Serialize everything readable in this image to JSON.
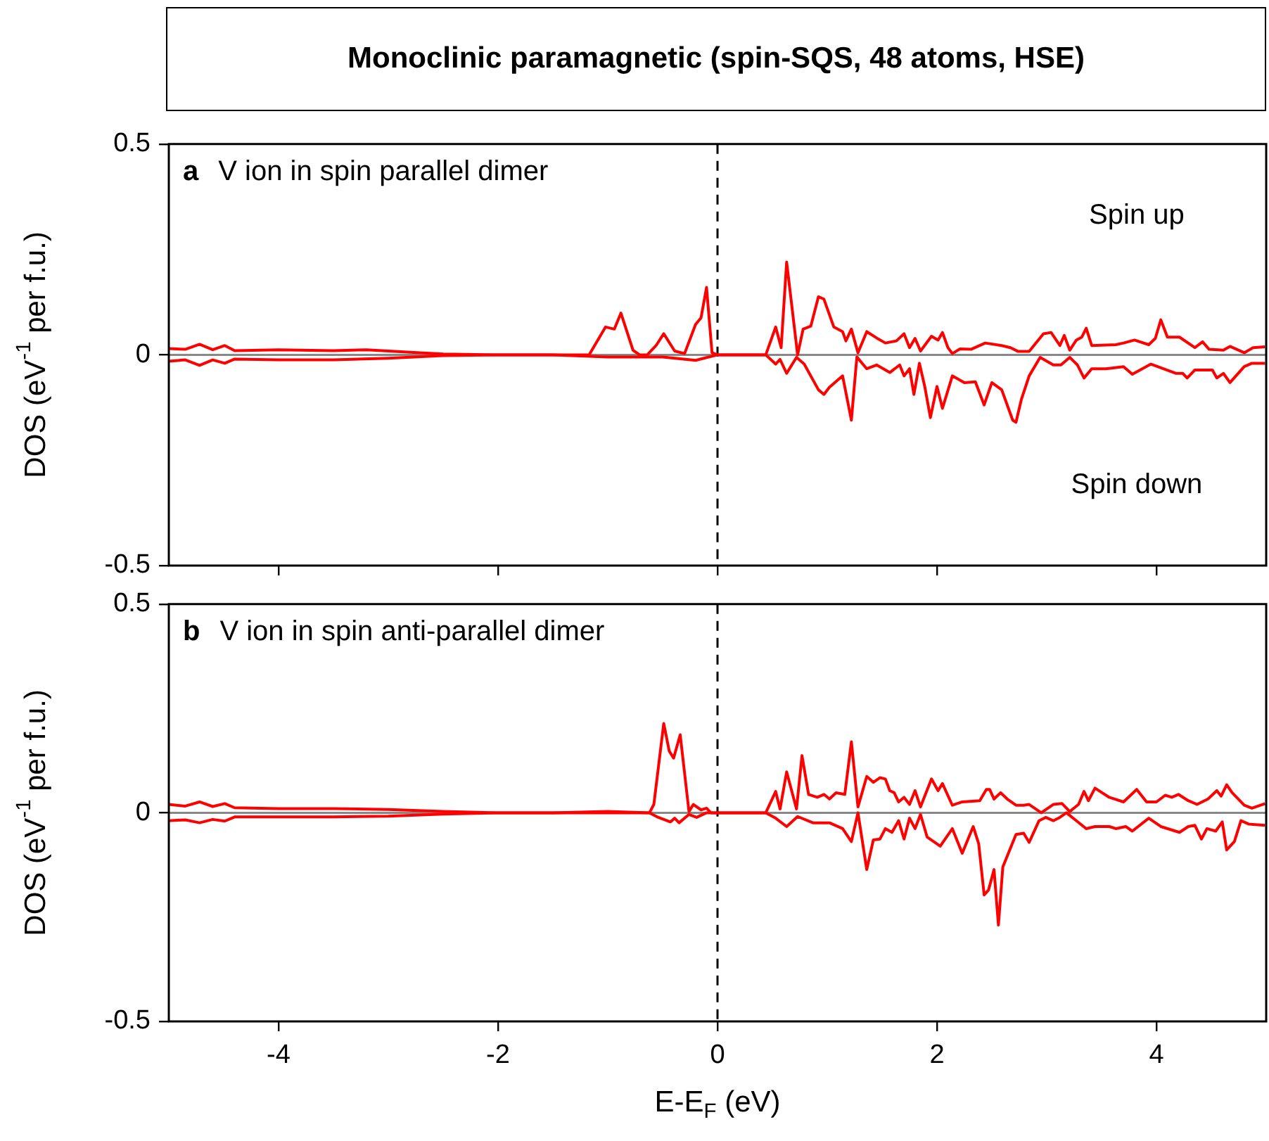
{
  "chart_data": [
    {
      "type": "line",
      "title": "Monoclinic paramagnetic (spin-SQS, 48 atoms, HSE)",
      "subtitle": "V ion in spin parallel dimer",
      "ylabel": "DOS (eV$^{-1}$ per f.u.)",
      "annotations": [
        "a",
        "Spin up",
        "Spin down"
      ],
      "xlim": [
        -5,
        5
      ],
      "xticks": [
        -4,
        -2,
        0,
        2,
        4
      ],
      "ylim": [
        -0.5,
        0.5
      ],
      "yticks": [
        -0.5,
        0,
        0.5
      ],
      "tick_labels": "y",
      "grid": false,
      "ref_lines": [
        {
          "axis": "y",
          "value": 0,
          "color": "#888888"
        },
        {
          "axis": "x",
          "value": 0,
          "color": "#000000",
          "line_style": "dashed"
        }
      ],
      "series": [
        {
          "color": "#ff0000",
          "x": [
            -5,
            -4.85,
            -4.72,
            -4.6,
            -4.49,
            -4.4,
            -4,
            -3.5,
            -3.2,
            -2.8,
            -2.5,
            -2,
            -1.5,
            -1.17,
            -1.02,
            -0.94,
            -0.88,
            -0.77,
            -0.71,
            -0.64,
            -0.56,
            -0.49,
            -0.39,
            -0.3,
            -0.2,
            -0.15,
            -0.1,
            -0.05,
            0,
            0.44,
            0.53,
            0.58,
            0.63,
            0.73,
            0.78,
            0.85,
            0.92,
            0.97,
            1.06,
            1.14,
            1.17,
            1.22,
            1.28,
            1.36,
            1.45,
            1.53,
            1.63,
            1.7,
            1.75,
            1.8,
            1.85,
            1.95,
            2.01,
            2.05,
            2.1,
            2.14,
            2.21,
            2.31,
            2.44,
            2.59,
            2.67,
            2.74,
            2.84,
            2.97,
            3.04,
            3.12,
            3.16,
            3.21,
            3.27,
            3.32,
            3.36,
            3.41,
            3.63,
            3.7,
            3.8,
            3.93,
            3.99,
            4.04,
            4.1,
            4.21,
            4.35,
            4.42,
            4.48,
            4.61,
            4.67,
            4.8,
            4.88,
            4.99
          ],
          "values": [
            0.015,
            0.013,
            0.025,
            0.012,
            0.022,
            0.01,
            0.012,
            0.01,
            0.012,
            0.006,
            0.002,
            0,
            0,
            0,
            0.066,
            0.061,
            0.099,
            0.011,
            0,
            0,
            0.022,
            0.05,
            0.009,
            0.003,
            0.072,
            0.088,
            0.16,
            0.005,
            0,
            0,
            0.066,
            0.017,
            0.22,
            0,
            0.061,
            0.068,
            0.138,
            0.132,
            0.066,
            0.055,
            0.033,
            0.061,
            0.005,
            0.055,
            0.04,
            0.028,
            0.033,
            0.05,
            0.017,
            0.039,
            0.009,
            0.044,
            0.035,
            0.053,
            0.017,
            0.003,
            0.014,
            0.013,
            0.028,
            0.022,
            0.017,
            0.008,
            0.008,
            0.05,
            0.053,
            0.022,
            0.046,
            0.011,
            0.035,
            0.042,
            0.063,
            0.022,
            0.024,
            0.028,
            0.035,
            0.024,
            0.039,
            0.083,
            0.042,
            0.042,
            0.017,
            0.031,
            0.013,
            0.011,
            0.02,
            0.005,
            0.017,
            0.019
          ]
        },
        {
          "color": "#ff0000",
          "x": [
            -5,
            -4.85,
            -4.72,
            -4.6,
            -4.49,
            -4.4,
            -4,
            -3.5,
            -3,
            -2.5,
            -2,
            -1.5,
            -1,
            -0.5,
            -0.2,
            0,
            0.44,
            0.53,
            0.57,
            0.63,
            0.72,
            0.79,
            0.92,
            0.97,
            1.02,
            1.14,
            1.22,
            1.27,
            1.36,
            1.45,
            1.57,
            1.66,
            1.7,
            1.75,
            1.79,
            1.84,
            1.89,
            1.94,
            2,
            2.05,
            2.14,
            2.25,
            2.35,
            2.43,
            2.5,
            2.59,
            2.69,
            2.72,
            2.77,
            2.84,
            2.94,
            3.06,
            3.13,
            3.21,
            3.28,
            3.34,
            3.41,
            3.54,
            3.7,
            3.78,
            3.95,
            4.18,
            4.24,
            4.28,
            4.35,
            4.51,
            4.55,
            4.61,
            4.67,
            4.8,
            4.87,
            4.99
          ],
          "values": [
            -0.015,
            -0.012,
            -0.025,
            -0.012,
            -0.02,
            -0.01,
            -0.012,
            -0.012,
            -0.008,
            -0.002,
            0,
            0,
            -0.005,
            -0.005,
            -0.013,
            0,
            0,
            -0.022,
            -0.011,
            -0.044,
            -0.006,
            -0.022,
            -0.083,
            -0.094,
            -0.077,
            -0.05,
            -0.155,
            -0.005,
            -0.033,
            -0.024,
            -0.042,
            -0.024,
            -0.05,
            -0.033,
            -0.094,
            -0.02,
            -0.077,
            -0.149,
            -0.075,
            -0.127,
            -0.05,
            -0.066,
            -0.064,
            -0.119,
            -0.066,
            -0.083,
            -0.155,
            -0.16,
            -0.105,
            -0.05,
            -0.006,
            -0.024,
            -0.024,
            -0.006,
            -0.024,
            -0.055,
            -0.033,
            -0.033,
            -0.028,
            -0.046,
            -0.022,
            -0.044,
            -0.044,
            -0.055,
            -0.036,
            -0.036,
            -0.055,
            -0.044,
            -0.066,
            -0.028,
            -0.02,
            -0.02
          ]
        }
      ]
    },
    {
      "type": "line",
      "subtitle": "V ion in spin anti-parallel dimer",
      "xlabel": "E-E$_{F}$ (eV)",
      "ylabel": "DOS (eV$^{-1}$ per f.u.)",
      "annotations": [
        "b"
      ],
      "xlim": [
        -5,
        5
      ],
      "xticks": [
        -4,
        -2,
        0,
        2,
        4
      ],
      "ylim": [
        -0.5,
        0.5
      ],
      "yticks": [
        -0.5,
        0,
        0.5
      ],
      "grid": false,
      "ref_lines": [
        {
          "axis": "y",
          "value": 0,
          "color": "#888888"
        },
        {
          "axis": "x",
          "value": 0,
          "color": "#000000",
          "line_style": "dashed"
        }
      ],
      "series": [
        {
          "color": "#ff0000",
          "x": [
            -5,
            -4.85,
            -4.72,
            -4.6,
            -4.49,
            -4.4,
            -4,
            -3.5,
            -3,
            -2.5,
            -2,
            -1.5,
            -1,
            -0.62,
            -0.58,
            -0.49,
            -0.44,
            -0.4,
            -0.34,
            -0.26,
            -0.22,
            -0.15,
            -0.1,
            -0.06,
            0,
            0.44,
            0.53,
            0.57,
            0.63,
            0.72,
            0.77,
            0.83,
            0.91,
            0.97,
            1.02,
            1.08,
            1.16,
            1.22,
            1.28,
            1.36,
            1.42,
            1.48,
            1.53,
            1.57,
            1.61,
            1.65,
            1.7,
            1.75,
            1.8,
            1.85,
            1.95,
            2.01,
            2.05,
            2.14,
            2.23,
            2.39,
            2.45,
            2.48,
            2.52,
            2.58,
            2.64,
            2.72,
            2.79,
            2.84,
            2.95,
            3.06,
            3.14,
            3.21,
            3.29,
            3.34,
            3.38,
            3.44,
            3.57,
            3.7,
            3.82,
            3.91,
            4,
            4.08,
            4.14,
            4.2,
            4.29,
            4.37,
            4.47,
            4.55,
            4.59,
            4.64,
            4.69,
            4.8,
            4.87,
            4.99
          ],
          "values": [
            0.02,
            0.016,
            0.026,
            0.015,
            0.022,
            0.012,
            0.01,
            0.01,
            0.008,
            0.003,
            0,
            0,
            0.003,
            0,
            0.02,
            0.214,
            0.148,
            0.131,
            0.187,
            0.003,
            0.02,
            0.007,
            0.011,
            0,
            0,
            0,
            0.051,
            0.009,
            0.098,
            0.009,
            0.137,
            0.044,
            0.037,
            0.044,
            0.033,
            0.048,
            0.044,
            0.17,
            0.014,
            0.087,
            0.073,
            0.084,
            0.081,
            0.053,
            0.048,
            0.026,
            0.037,
            0.02,
            0.053,
            0.014,
            0.081,
            0.053,
            0.07,
            0.018,
            0.026,
            0.029,
            0.056,
            0.056,
            0.033,
            0.048,
            0.033,
            0.018,
            0.018,
            0.02,
            0,
            0.02,
            0.022,
            0.003,
            0.02,
            0.051,
            0.029,
            0.059,
            0.037,
            0.026,
            0.056,
            0.026,
            0.026,
            0.042,
            0.037,
            0.044,
            0.029,
            0.02,
            0.033,
            0.053,
            0.04,
            0.067,
            0.048,
            0.018,
            0.011,
            0.022
          ]
        },
        {
          "color": "#ff0000",
          "x": [
            -5,
            -4.85,
            -4.72,
            -4.6,
            -4.49,
            -4.4,
            -4,
            -3.5,
            -3,
            -2.5,
            -2,
            -1.5,
            -1,
            -0.62,
            -0.54,
            -0.43,
            -0.39,
            -0.35,
            -0.26,
            -0.19,
            -0.1,
            0,
            0.44,
            0.53,
            0.63,
            0.73,
            0.87,
            1.02,
            1.14,
            1.22,
            1.28,
            1.36,
            1.42,
            1.48,
            1.53,
            1.59,
            1.65,
            1.7,
            1.75,
            1.8,
            1.85,
            1.91,
            2.03,
            2.14,
            2.23,
            2.33,
            2.38,
            2.43,
            2.47,
            2.52,
            2.56,
            2.6,
            2.72,
            2.79,
            2.84,
            2.93,
            2.99,
            3.06,
            3.12,
            3.18,
            3.36,
            3.44,
            3.57,
            3.63,
            3.72,
            3.78,
            3.93,
            4.04,
            4.21,
            4.29,
            4.35,
            4.41,
            4.46,
            4.54,
            4.6,
            4.64,
            4.71,
            4.77,
            4.84,
            4.99
          ],
          "values": [
            -0.019,
            -0.017,
            -0.024,
            -0.016,
            -0.02,
            -0.01,
            -0.01,
            -0.01,
            -0.008,
            -0.003,
            0,
            0,
            0,
            0,
            -0.011,
            -0.022,
            -0.013,
            -0.024,
            -0.004,
            -0.011,
            0,
            0,
            0,
            -0.013,
            -0.033,
            -0.009,
            -0.024,
            -0.024,
            -0.038,
            -0.069,
            0,
            -0.136,
            -0.065,
            -0.063,
            -0.038,
            -0.047,
            -0.019,
            -0.063,
            -0.013,
            -0.038,
            -0.004,
            -0.058,
            -0.08,
            -0.038,
            -0.097,
            -0.033,
            -0.074,
            -0.197,
            -0.185,
            -0.136,
            -0.269,
            -0.13,
            -0.052,
            -0.049,
            -0.071,
            -0.019,
            -0.011,
            -0.019,
            -0.011,
            0,
            -0.038,
            -0.033,
            -0.033,
            -0.038,
            -0.033,
            -0.044,
            -0.013,
            -0.033,
            -0.047,
            -0.033,
            -0.03,
            -0.063,
            -0.038,
            -0.044,
            -0.022,
            -0.089,
            -0.069,
            -0.019,
            -0.027,
            -0.03
          ]
        }
      ]
    }
  ]
}
